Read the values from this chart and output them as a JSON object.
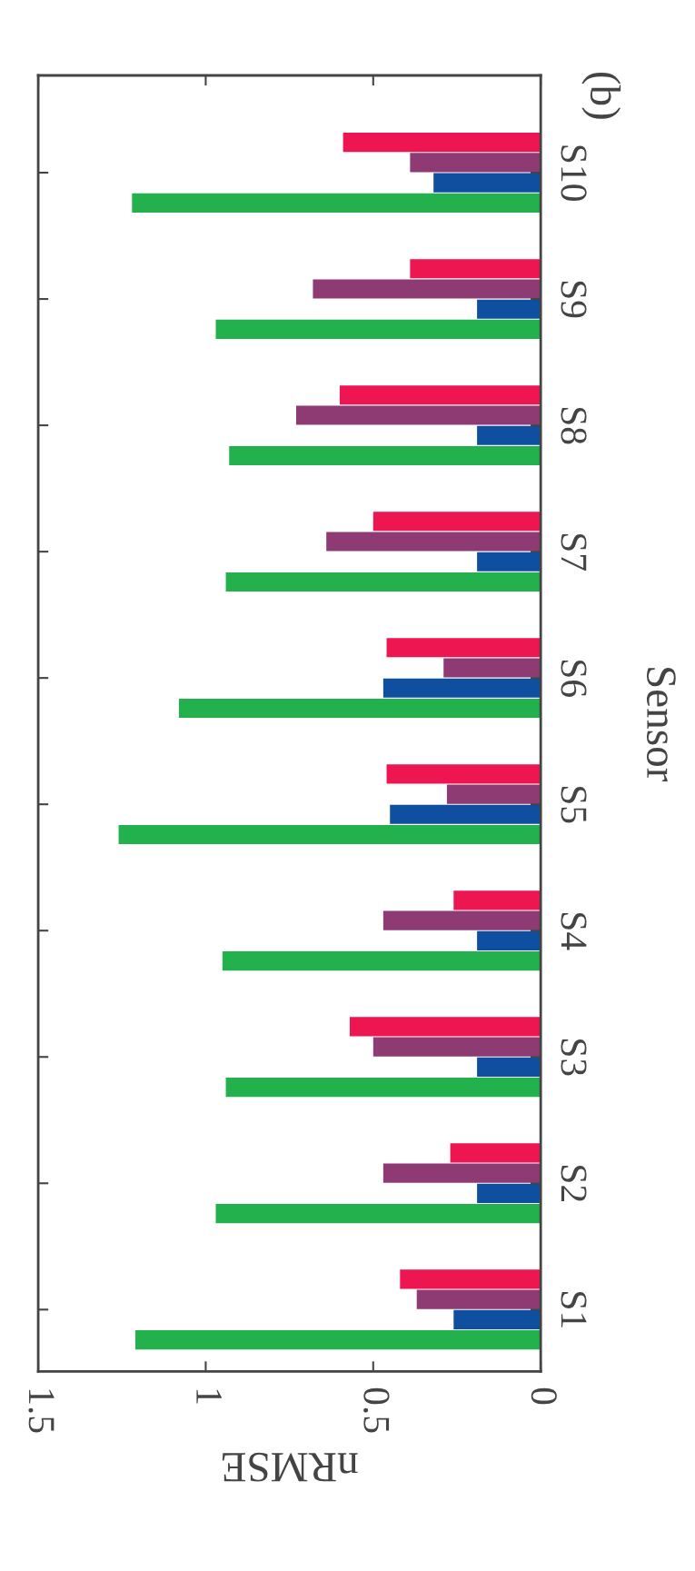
{
  "chart_data": {
    "type": "bar",
    "orientation": "horizontal",
    "title": "(b)",
    "xlabel": "nRMSE",
    "ylabel": "Sensor",
    "categories": [
      "S10",
      "S9",
      "S8",
      "S7",
      "S6",
      "S5",
      "S4",
      "S3",
      "S2",
      "S1"
    ],
    "series": [
      {
        "color": "#ee1650",
        "values": [
          0.59,
          0.39,
          0.6,
          0.5,
          0.46,
          0.46,
          0.26,
          0.57,
          0.27,
          0.42
        ]
      },
      {
        "color": "#8e3b73",
        "values": [
          0.39,
          0.68,
          0.73,
          0.64,
          0.29,
          0.28,
          0.47,
          0.5,
          0.47,
          0.37
        ]
      },
      {
        "color": "#0f4fa0",
        "values": [
          0.32,
          0.19,
          0.19,
          0.19,
          0.47,
          0.45,
          0.19,
          0.19,
          0.19,
          0.26
        ]
      },
      {
        "color": "#22b14c",
        "values": [
          1.22,
          0.97,
          0.93,
          0.94,
          1.08,
          1.26,
          0.95,
          0.94,
          0.97,
          1.21
        ]
      }
    ],
    "xlim": [
      1.5,
      0
    ],
    "xticks": [
      1.5,
      1,
      0.5,
      0
    ],
    "grid": false,
    "legend": false
  }
}
